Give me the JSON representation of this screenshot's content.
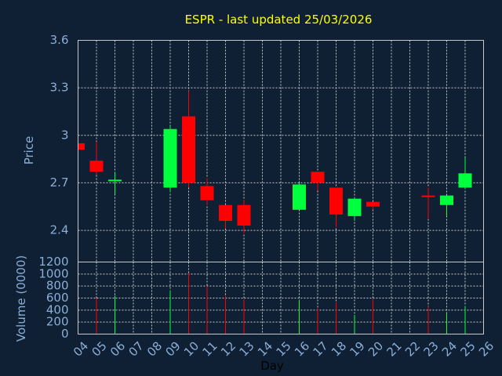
{
  "chart_data": {
    "title": "ESPR - last updated 25/03/2026",
    "xlabel": "Day",
    "price_panel": {
      "type": "candlestick",
      "ylabel": "Price",
      "ylim": [
        2.2,
        3.6
      ],
      "yticks": [
        "2.4",
        "2.7",
        "3",
        "3.3",
        "3.6"
      ],
      "grid": true
    },
    "volume_panel": {
      "type": "bar",
      "ylabel": "Volume (0000)",
      "ylim": [
        0,
        1200
      ],
      "yticks": [
        "0",
        "200",
        "400",
        "600",
        "800",
        "1000",
        "1200"
      ],
      "grid": true
    },
    "x_ticks": [
      "04",
      "05",
      "06",
      "07",
      "08",
      "09",
      "10",
      "11",
      "12",
      "13",
      "14",
      "15",
      "16",
      "17",
      "18",
      "19",
      "20",
      "21",
      "22",
      "23",
      "24",
      "25",
      "26"
    ],
    "candles": [
      {
        "day": 4,
        "open": 2.95,
        "close": 2.91,
        "high": 2.95,
        "low": 2.91,
        "volume": 0
      },
      {
        "day": 5,
        "open": 2.84,
        "close": 2.77,
        "high": 2.96,
        "low": 2.75,
        "volume": 600
      },
      {
        "day": 6,
        "open": 2.71,
        "close": 2.72,
        "high": 2.77,
        "low": 2.63,
        "volume": 640
      },
      {
        "day": 9,
        "open": 2.67,
        "close": 3.04,
        "high": 3.06,
        "low": 2.64,
        "volume": 730
      },
      {
        "day": 10,
        "open": 3.12,
        "close": 2.7,
        "high": 3.28,
        "low": 2.67,
        "volume": 1020
      },
      {
        "day": 11,
        "open": 2.68,
        "close": 2.59,
        "high": 2.73,
        "low": 2.56,
        "volume": 800
      },
      {
        "day": 12,
        "open": 2.56,
        "close": 2.46,
        "high": 2.56,
        "low": 2.41,
        "volume": 640
      },
      {
        "day": 13,
        "open": 2.56,
        "close": 2.43,
        "high": 2.59,
        "low": 2.38,
        "volume": 580
      },
      {
        "day": 16,
        "open": 2.53,
        "close": 2.69,
        "high": 2.7,
        "low": 2.53,
        "volume": 570
      },
      {
        "day": 17,
        "open": 2.77,
        "close": 2.7,
        "high": 2.77,
        "low": 2.65,
        "volume": 430
      },
      {
        "day": 18,
        "open": 2.67,
        "close": 2.5,
        "high": 2.67,
        "low": 2.42,
        "volume": 530
      },
      {
        "day": 19,
        "open": 2.49,
        "close": 2.6,
        "high": 2.61,
        "low": 2.46,
        "volume": 320
      },
      {
        "day": 20,
        "open": 2.58,
        "close": 2.55,
        "high": 2.58,
        "low": 2.53,
        "volume": 580
      },
      {
        "day": 23,
        "open": 2.62,
        "close": 2.61,
        "high": 2.67,
        "low": 2.47,
        "volume": 460
      },
      {
        "day": 24,
        "open": 2.56,
        "close": 2.62,
        "high": 2.62,
        "low": 2.49,
        "volume": 350
      },
      {
        "day": 25,
        "open": 2.67,
        "close": 2.76,
        "high": 2.86,
        "low": 2.66,
        "volume": 470
      }
    ],
    "colors": {
      "up": "#00ff3c",
      "down": "#ff0000",
      "background": "#0f2034",
      "title": "#ffff00",
      "axis_text": "#8aaed6",
      "grid": "#c8c8c8"
    }
  }
}
